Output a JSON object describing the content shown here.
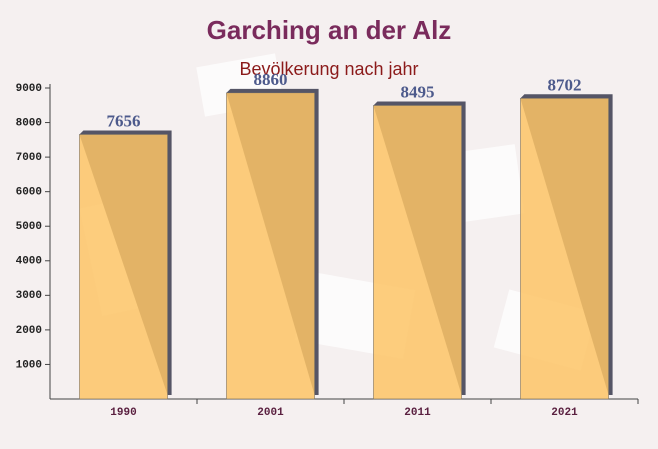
{
  "chart_data": {
    "type": "bar",
    "title": "Garching an der Alz",
    "subtitle": "Bevölkerung nach jahr",
    "categories": [
      "1990",
      "2001",
      "2011",
      "2021"
    ],
    "values": [
      7656,
      8860,
      8495,
      8702
    ],
    "color": "#fdc466",
    "ylim": [
      0,
      9000
    ],
    "yticks": [
      1000,
      2000,
      3000,
      4000,
      5000,
      6000,
      7000,
      8000,
      9000
    ],
    "grid": false
  }
}
